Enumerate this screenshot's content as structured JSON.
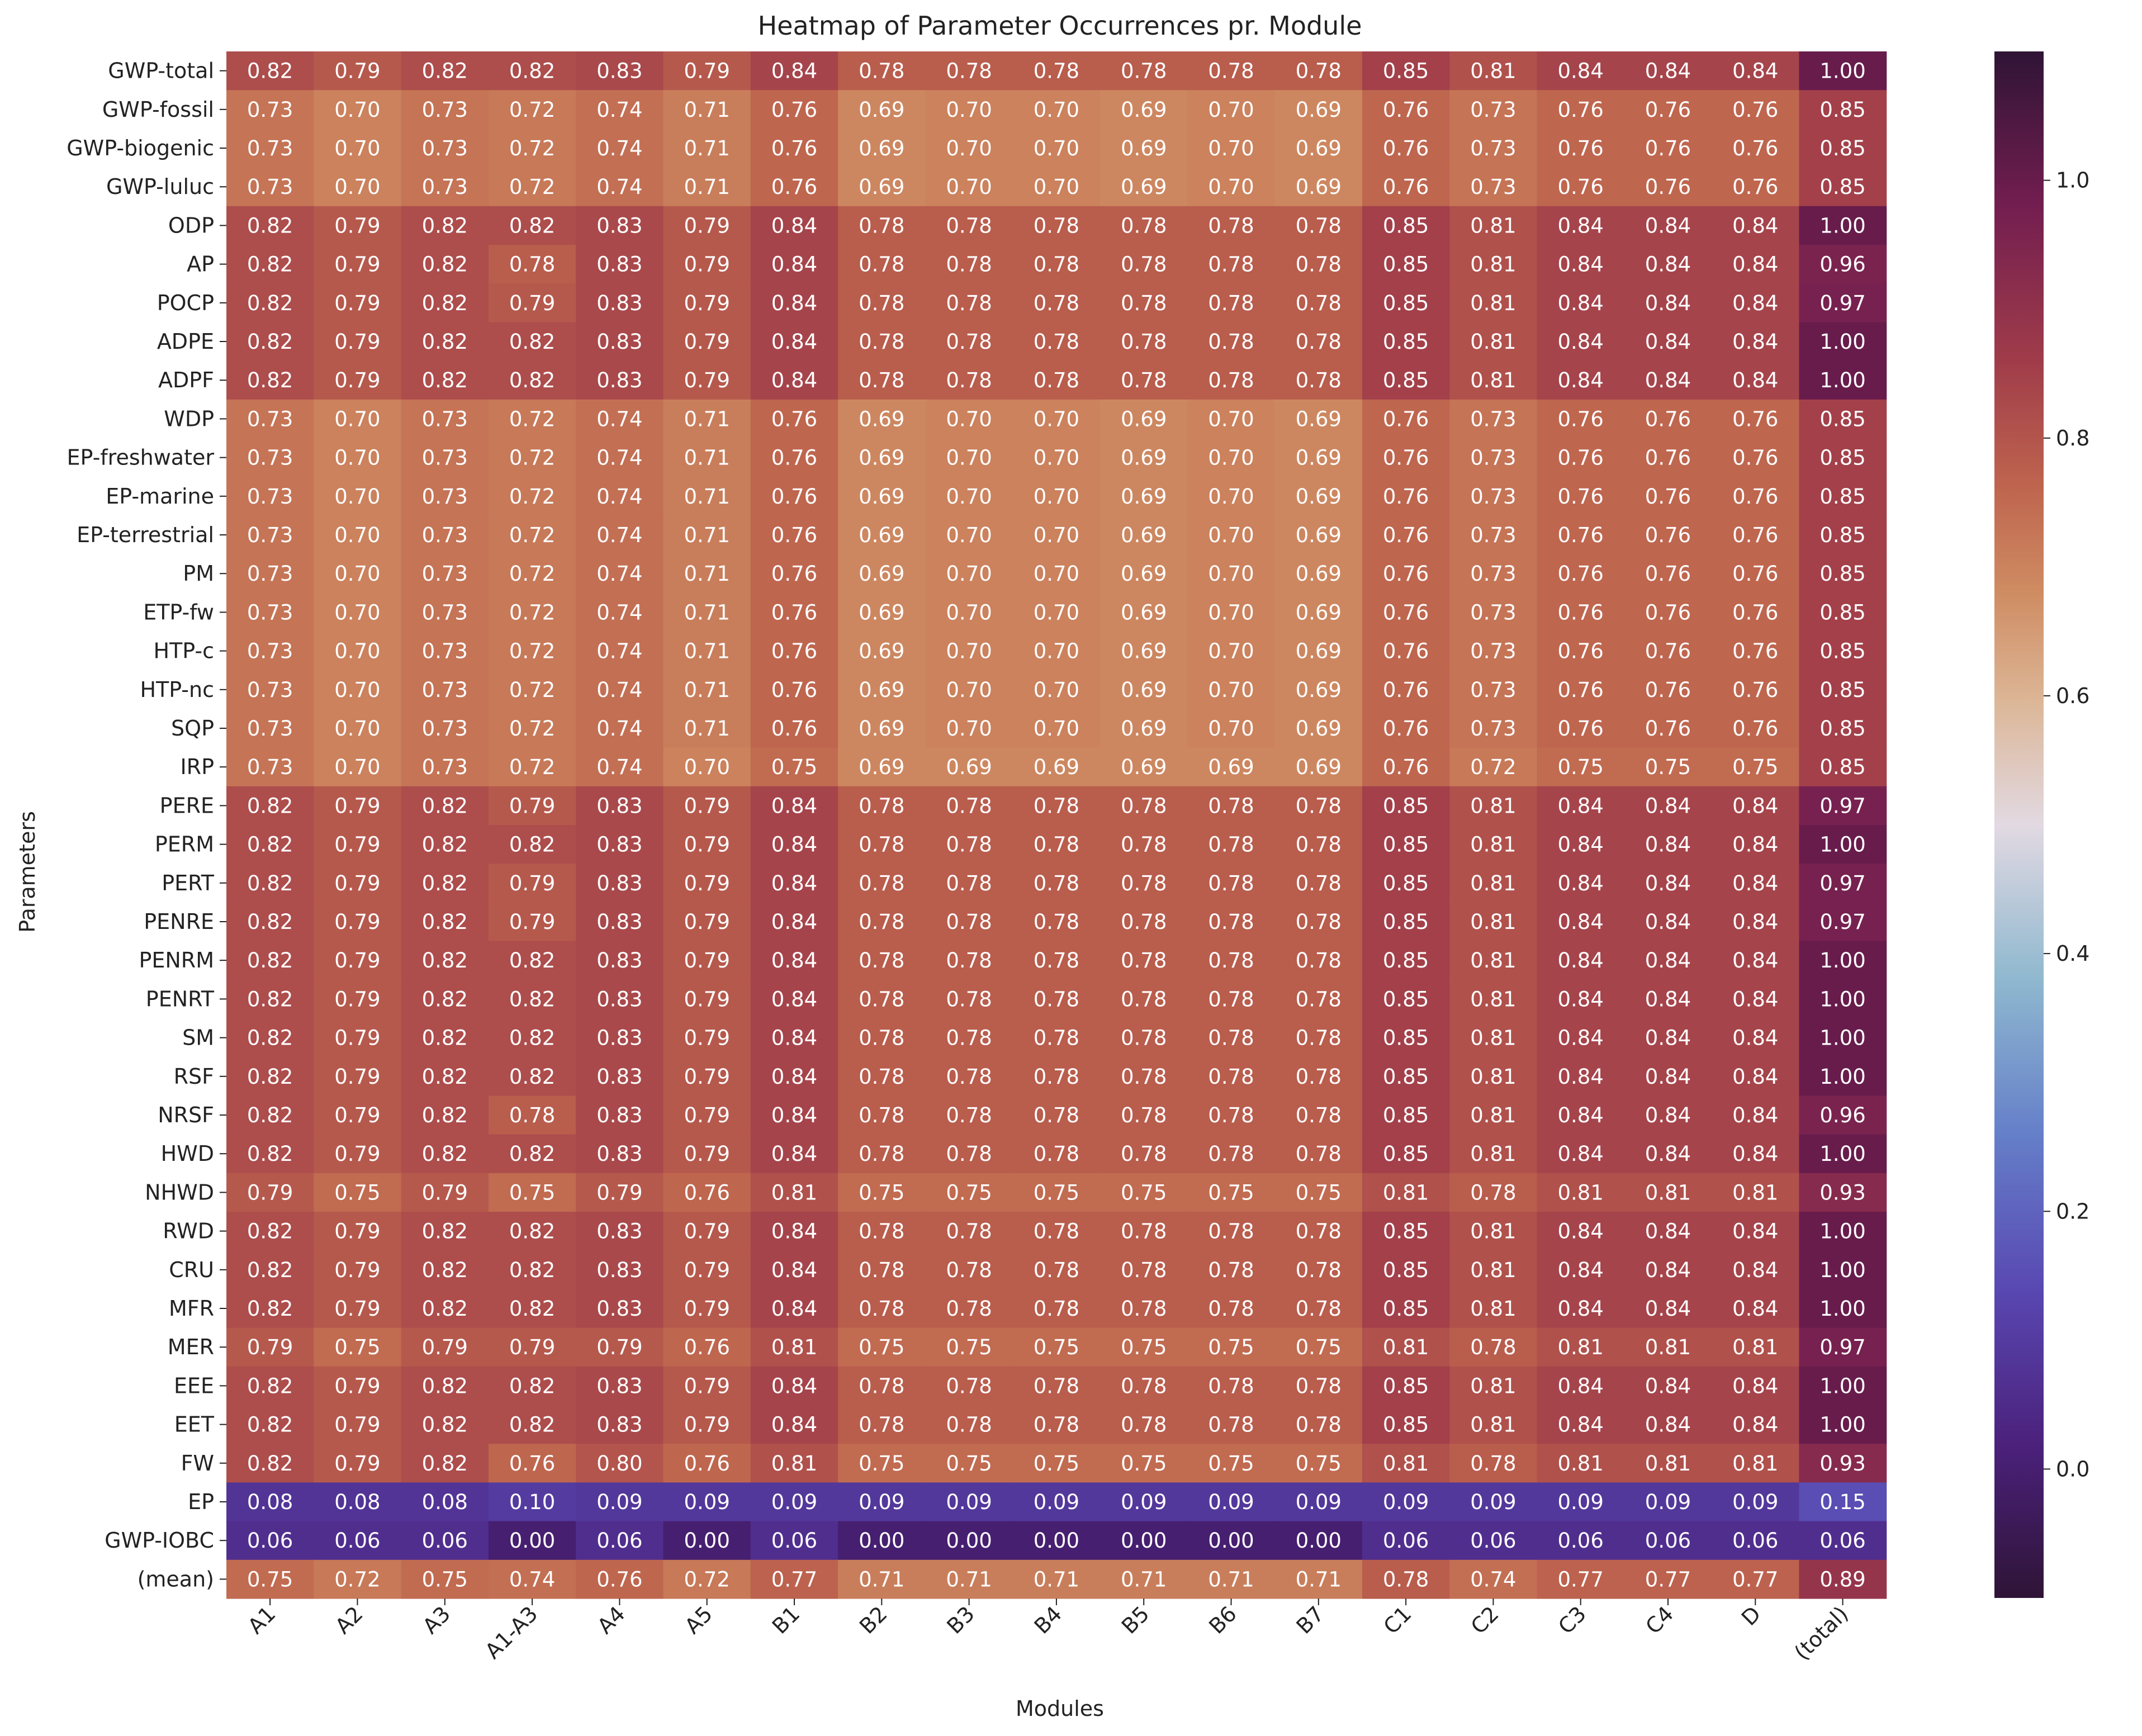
{
  "chart_data": {
    "type": "heatmap",
    "title": "Heatmap of Parameter Occurrences pr. Module",
    "xlabel": "Modules",
    "ylabel": "Parameters",
    "columns": [
      "A1",
      "A2",
      "A3",
      "A1-A3",
      "A4",
      "A5",
      "B1",
      "B2",
      "B3",
      "B4",
      "B5",
      "B6",
      "B7",
      "C1",
      "C2",
      "C3",
      "C4",
      "D",
      "(total)"
    ],
    "rows": [
      "GWP-total",
      "GWP-fossil",
      "GWP-biogenic",
      "GWP-luluc",
      "ODP",
      "AP",
      "POCP",
      "ADPE",
      "ADPF",
      "WDP",
      "EP-freshwater",
      "EP-marine",
      "EP-terrestrial",
      "PM",
      "ETP-fw",
      "HTP-c",
      "HTP-nc",
      "SQP",
      "IRP",
      "PERE",
      "PERM",
      "PERT",
      "PENRE",
      "PENRM",
      "PENRT",
      "SM",
      "RSF",
      "NRSF",
      "HWD",
      "NHWD",
      "RWD",
      "CRU",
      "MFR",
      "MER",
      "EEE",
      "EET",
      "FW",
      "EP",
      "GWP-IOBC",
      "(mean)"
    ],
    "values": [
      [
        0.82,
        0.79,
        0.82,
        0.82,
        0.83,
        0.79,
        0.84,
        0.78,
        0.78,
        0.78,
        0.78,
        0.78,
        0.78,
        0.85,
        0.81,
        0.84,
        0.84,
        0.84,
        1.0
      ],
      [
        0.73,
        0.7,
        0.73,
        0.72,
        0.74,
        0.71,
        0.76,
        0.69,
        0.7,
        0.7,
        0.69,
        0.7,
        0.69,
        0.76,
        0.73,
        0.76,
        0.76,
        0.76,
        0.85
      ],
      [
        0.73,
        0.7,
        0.73,
        0.72,
        0.74,
        0.71,
        0.76,
        0.69,
        0.7,
        0.7,
        0.69,
        0.7,
        0.69,
        0.76,
        0.73,
        0.76,
        0.76,
        0.76,
        0.85
      ],
      [
        0.73,
        0.7,
        0.73,
        0.72,
        0.74,
        0.71,
        0.76,
        0.69,
        0.7,
        0.7,
        0.69,
        0.7,
        0.69,
        0.76,
        0.73,
        0.76,
        0.76,
        0.76,
        0.85
      ],
      [
        0.82,
        0.79,
        0.82,
        0.82,
        0.83,
        0.79,
        0.84,
        0.78,
        0.78,
        0.78,
        0.78,
        0.78,
        0.78,
        0.85,
        0.81,
        0.84,
        0.84,
        0.84,
        1.0
      ],
      [
        0.82,
        0.79,
        0.82,
        0.78,
        0.83,
        0.79,
        0.84,
        0.78,
        0.78,
        0.78,
        0.78,
        0.78,
        0.78,
        0.85,
        0.81,
        0.84,
        0.84,
        0.84,
        0.96
      ],
      [
        0.82,
        0.79,
        0.82,
        0.79,
        0.83,
        0.79,
        0.84,
        0.78,
        0.78,
        0.78,
        0.78,
        0.78,
        0.78,
        0.85,
        0.81,
        0.84,
        0.84,
        0.84,
        0.97
      ],
      [
        0.82,
        0.79,
        0.82,
        0.82,
        0.83,
        0.79,
        0.84,
        0.78,
        0.78,
        0.78,
        0.78,
        0.78,
        0.78,
        0.85,
        0.81,
        0.84,
        0.84,
        0.84,
        1.0
      ],
      [
        0.82,
        0.79,
        0.82,
        0.82,
        0.83,
        0.79,
        0.84,
        0.78,
        0.78,
        0.78,
        0.78,
        0.78,
        0.78,
        0.85,
        0.81,
        0.84,
        0.84,
        0.84,
        1.0
      ],
      [
        0.73,
        0.7,
        0.73,
        0.72,
        0.74,
        0.71,
        0.76,
        0.69,
        0.7,
        0.7,
        0.69,
        0.7,
        0.69,
        0.76,
        0.73,
        0.76,
        0.76,
        0.76,
        0.85
      ],
      [
        0.73,
        0.7,
        0.73,
        0.72,
        0.74,
        0.71,
        0.76,
        0.69,
        0.7,
        0.7,
        0.69,
        0.7,
        0.69,
        0.76,
        0.73,
        0.76,
        0.76,
        0.76,
        0.85
      ],
      [
        0.73,
        0.7,
        0.73,
        0.72,
        0.74,
        0.71,
        0.76,
        0.69,
        0.7,
        0.7,
        0.69,
        0.7,
        0.69,
        0.76,
        0.73,
        0.76,
        0.76,
        0.76,
        0.85
      ],
      [
        0.73,
        0.7,
        0.73,
        0.72,
        0.74,
        0.71,
        0.76,
        0.69,
        0.7,
        0.7,
        0.69,
        0.7,
        0.69,
        0.76,
        0.73,
        0.76,
        0.76,
        0.76,
        0.85
      ],
      [
        0.73,
        0.7,
        0.73,
        0.72,
        0.74,
        0.71,
        0.76,
        0.69,
        0.7,
        0.7,
        0.69,
        0.7,
        0.69,
        0.76,
        0.73,
        0.76,
        0.76,
        0.76,
        0.85
      ],
      [
        0.73,
        0.7,
        0.73,
        0.72,
        0.74,
        0.71,
        0.76,
        0.69,
        0.7,
        0.7,
        0.69,
        0.7,
        0.69,
        0.76,
        0.73,
        0.76,
        0.76,
        0.76,
        0.85
      ],
      [
        0.73,
        0.7,
        0.73,
        0.72,
        0.74,
        0.71,
        0.76,
        0.69,
        0.7,
        0.7,
        0.69,
        0.7,
        0.69,
        0.76,
        0.73,
        0.76,
        0.76,
        0.76,
        0.85
      ],
      [
        0.73,
        0.7,
        0.73,
        0.72,
        0.74,
        0.71,
        0.76,
        0.69,
        0.7,
        0.7,
        0.69,
        0.7,
        0.69,
        0.76,
        0.73,
        0.76,
        0.76,
        0.76,
        0.85
      ],
      [
        0.73,
        0.7,
        0.73,
        0.72,
        0.74,
        0.71,
        0.76,
        0.69,
        0.7,
        0.7,
        0.69,
        0.7,
        0.69,
        0.76,
        0.73,
        0.76,
        0.76,
        0.76,
        0.85
      ],
      [
        0.73,
        0.7,
        0.73,
        0.72,
        0.74,
        0.7,
        0.75,
        0.69,
        0.69,
        0.69,
        0.69,
        0.69,
        0.69,
        0.76,
        0.72,
        0.75,
        0.75,
        0.75,
        0.85
      ],
      [
        0.82,
        0.79,
        0.82,
        0.79,
        0.83,
        0.79,
        0.84,
        0.78,
        0.78,
        0.78,
        0.78,
        0.78,
        0.78,
        0.85,
        0.81,
        0.84,
        0.84,
        0.84,
        0.97
      ],
      [
        0.82,
        0.79,
        0.82,
        0.82,
        0.83,
        0.79,
        0.84,
        0.78,
        0.78,
        0.78,
        0.78,
        0.78,
        0.78,
        0.85,
        0.81,
        0.84,
        0.84,
        0.84,
        1.0
      ],
      [
        0.82,
        0.79,
        0.82,
        0.79,
        0.83,
        0.79,
        0.84,
        0.78,
        0.78,
        0.78,
        0.78,
        0.78,
        0.78,
        0.85,
        0.81,
        0.84,
        0.84,
        0.84,
        0.97
      ],
      [
        0.82,
        0.79,
        0.82,
        0.79,
        0.83,
        0.79,
        0.84,
        0.78,
        0.78,
        0.78,
        0.78,
        0.78,
        0.78,
        0.85,
        0.81,
        0.84,
        0.84,
        0.84,
        0.97
      ],
      [
        0.82,
        0.79,
        0.82,
        0.82,
        0.83,
        0.79,
        0.84,
        0.78,
        0.78,
        0.78,
        0.78,
        0.78,
        0.78,
        0.85,
        0.81,
        0.84,
        0.84,
        0.84,
        1.0
      ],
      [
        0.82,
        0.79,
        0.82,
        0.82,
        0.83,
        0.79,
        0.84,
        0.78,
        0.78,
        0.78,
        0.78,
        0.78,
        0.78,
        0.85,
        0.81,
        0.84,
        0.84,
        0.84,
        1.0
      ],
      [
        0.82,
        0.79,
        0.82,
        0.82,
        0.83,
        0.79,
        0.84,
        0.78,
        0.78,
        0.78,
        0.78,
        0.78,
        0.78,
        0.85,
        0.81,
        0.84,
        0.84,
        0.84,
        1.0
      ],
      [
        0.82,
        0.79,
        0.82,
        0.82,
        0.83,
        0.79,
        0.84,
        0.78,
        0.78,
        0.78,
        0.78,
        0.78,
        0.78,
        0.85,
        0.81,
        0.84,
        0.84,
        0.84,
        1.0
      ],
      [
        0.82,
        0.79,
        0.82,
        0.78,
        0.83,
        0.79,
        0.84,
        0.78,
        0.78,
        0.78,
        0.78,
        0.78,
        0.78,
        0.85,
        0.81,
        0.84,
        0.84,
        0.84,
        0.96
      ],
      [
        0.82,
        0.79,
        0.82,
        0.82,
        0.83,
        0.79,
        0.84,
        0.78,
        0.78,
        0.78,
        0.78,
        0.78,
        0.78,
        0.85,
        0.81,
        0.84,
        0.84,
        0.84,
        1.0
      ],
      [
        0.79,
        0.75,
        0.79,
        0.75,
        0.79,
        0.76,
        0.81,
        0.75,
        0.75,
        0.75,
        0.75,
        0.75,
        0.75,
        0.81,
        0.78,
        0.81,
        0.81,
        0.81,
        0.93
      ],
      [
        0.82,
        0.79,
        0.82,
        0.82,
        0.83,
        0.79,
        0.84,
        0.78,
        0.78,
        0.78,
        0.78,
        0.78,
        0.78,
        0.85,
        0.81,
        0.84,
        0.84,
        0.84,
        1.0
      ],
      [
        0.82,
        0.79,
        0.82,
        0.82,
        0.83,
        0.79,
        0.84,
        0.78,
        0.78,
        0.78,
        0.78,
        0.78,
        0.78,
        0.85,
        0.81,
        0.84,
        0.84,
        0.84,
        1.0
      ],
      [
        0.82,
        0.79,
        0.82,
        0.82,
        0.83,
        0.79,
        0.84,
        0.78,
        0.78,
        0.78,
        0.78,
        0.78,
        0.78,
        0.85,
        0.81,
        0.84,
        0.84,
        0.84,
        1.0
      ],
      [
        0.79,
        0.75,
        0.79,
        0.79,
        0.79,
        0.76,
        0.81,
        0.75,
        0.75,
        0.75,
        0.75,
        0.75,
        0.75,
        0.81,
        0.78,
        0.81,
        0.81,
        0.81,
        0.97
      ],
      [
        0.82,
        0.79,
        0.82,
        0.82,
        0.83,
        0.79,
        0.84,
        0.78,
        0.78,
        0.78,
        0.78,
        0.78,
        0.78,
        0.85,
        0.81,
        0.84,
        0.84,
        0.84,
        1.0
      ],
      [
        0.82,
        0.79,
        0.82,
        0.82,
        0.83,
        0.79,
        0.84,
        0.78,
        0.78,
        0.78,
        0.78,
        0.78,
        0.78,
        0.85,
        0.81,
        0.84,
        0.84,
        0.84,
        1.0
      ],
      [
        0.82,
        0.79,
        0.82,
        0.76,
        0.8,
        0.76,
        0.81,
        0.75,
        0.75,
        0.75,
        0.75,
        0.75,
        0.75,
        0.81,
        0.78,
        0.81,
        0.81,
        0.81,
        0.93
      ],
      [
        0.08,
        0.08,
        0.08,
        0.1,
        0.09,
        0.09,
        0.09,
        0.09,
        0.09,
        0.09,
        0.09,
        0.09,
        0.09,
        0.09,
        0.09,
        0.09,
        0.09,
        0.09,
        0.15
      ],
      [
        0.06,
        0.06,
        0.06,
        0.0,
        0.06,
        0.0,
        0.06,
        0.0,
        0.0,
        0.0,
        0.0,
        0.0,
        0.0,
        0.06,
        0.06,
        0.06,
        0.06,
        0.06,
        0.06
      ],
      [
        0.75,
        0.72,
        0.75,
        0.74,
        0.76,
        0.72,
        0.77,
        0.71,
        0.71,
        0.71,
        0.71,
        0.71,
        0.71,
        0.78,
        0.74,
        0.77,
        0.77,
        0.77,
        0.89
      ]
    ],
    "value_format": "2 decimals",
    "colormap": "twilight_shifted",
    "colorbar": {
      "vmin": -0.1,
      "vmax": 1.1,
      "ticks": [
        "0.0",
        "0.2",
        "0.4",
        "0.6",
        "0.8",
        "1.0"
      ]
    }
  }
}
